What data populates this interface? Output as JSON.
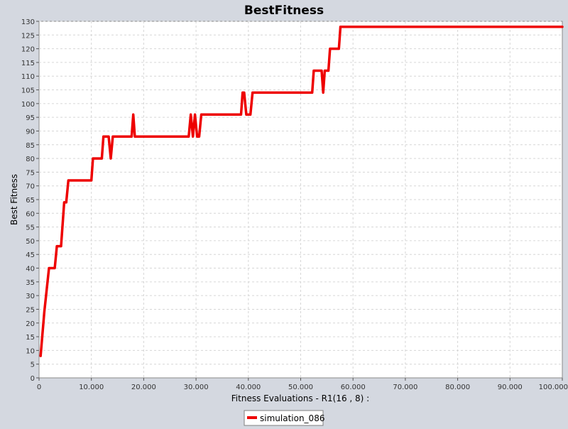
{
  "chart_data": {
    "type": "line",
    "title": "BestFitness",
    "xlabel": "Fitness Evaluations - R1(16 , 8) :",
    "ylabel": "Best Fitness",
    "xlim": [
      0,
      100000
    ],
    "ylim": [
      0,
      130
    ],
    "xticks": [
      {
        "value": 0,
        "label": "0"
      },
      {
        "value": 10000,
        "label": "10.000"
      },
      {
        "value": 20000,
        "label": "20.000"
      },
      {
        "value": 30000,
        "label": "30.000"
      },
      {
        "value": 40000,
        "label": "40.000"
      },
      {
        "value": 50000,
        "label": "50.000"
      },
      {
        "value": 60000,
        "label": "60.000"
      },
      {
        "value": 70000,
        "label": "70.000"
      },
      {
        "value": 80000,
        "label": "80.000"
      },
      {
        "value": 90000,
        "label": "90.000"
      },
      {
        "value": 100000,
        "label": "100.000"
      }
    ],
    "yticks": [
      {
        "value": 0,
        "label": "0"
      },
      {
        "value": 5,
        "label": "5"
      },
      {
        "value": 10,
        "label": "10"
      },
      {
        "value": 15,
        "label": "15"
      },
      {
        "value": 20,
        "label": "20"
      },
      {
        "value": 25,
        "label": "25"
      },
      {
        "value": 30,
        "label": "30"
      },
      {
        "value": 35,
        "label": "35"
      },
      {
        "value": 40,
        "label": "40"
      },
      {
        "value": 45,
        "label": "45"
      },
      {
        "value": 50,
        "label": "50"
      },
      {
        "value": 55,
        "label": "55"
      },
      {
        "value": 60,
        "label": "60"
      },
      {
        "value": 65,
        "label": "65"
      },
      {
        "value": 70,
        "label": "70"
      },
      {
        "value": 75,
        "label": "75"
      },
      {
        "value": 80,
        "label": "80"
      },
      {
        "value": 85,
        "label": "85"
      },
      {
        "value": 90,
        "label": "90"
      },
      {
        "value": 95,
        "label": "95"
      },
      {
        "value": 100,
        "label": "100"
      },
      {
        "value": 105,
        "label": "105"
      },
      {
        "value": 110,
        "label": "110"
      },
      {
        "value": 115,
        "label": "115"
      },
      {
        "value": 120,
        "label": "120"
      },
      {
        "value": 125,
        "label": "125"
      },
      {
        "value": 130,
        "label": "130"
      }
    ],
    "grid": true,
    "legend_position": "bottom",
    "series": [
      {
        "name": "simulation_086",
        "color": "#ee0000",
        "points": [
          [
            300,
            8
          ],
          [
            1000,
            24
          ],
          [
            1900,
            40
          ],
          [
            3000,
            40
          ],
          [
            3400,
            48
          ],
          [
            4200,
            48
          ],
          [
            4800,
            64
          ],
          [
            5200,
            64
          ],
          [
            5600,
            72
          ],
          [
            10000,
            72
          ],
          [
            10300,
            80
          ],
          [
            12000,
            80
          ],
          [
            12300,
            88
          ],
          [
            13300,
            88
          ],
          [
            13700,
            80
          ],
          [
            14100,
            88
          ],
          [
            17700,
            88
          ],
          [
            18000,
            96
          ],
          [
            18300,
            88
          ],
          [
            28600,
            88
          ],
          [
            29000,
            96
          ],
          [
            29400,
            88
          ],
          [
            29800,
            96
          ],
          [
            30200,
            88
          ],
          [
            30600,
            88
          ],
          [
            31000,
            96
          ],
          [
            38600,
            96
          ],
          [
            38900,
            104
          ],
          [
            39200,
            104
          ],
          [
            39600,
            96
          ],
          [
            40400,
            96
          ],
          [
            40800,
            104
          ],
          [
            52200,
            104
          ],
          [
            52500,
            112
          ],
          [
            54000,
            112
          ],
          [
            54300,
            104
          ],
          [
            54600,
            112
          ],
          [
            55300,
            112
          ],
          [
            55600,
            120
          ],
          [
            57300,
            120
          ],
          [
            57600,
            128
          ],
          [
            100000,
            128
          ]
        ]
      }
    ]
  }
}
